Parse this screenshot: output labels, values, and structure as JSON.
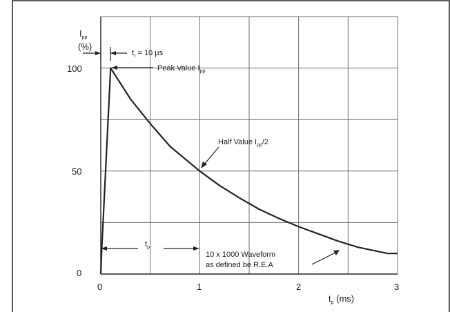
{
  "chart_data": {
    "type": "line",
    "title": "",
    "ylabel": {
      "main": "I",
      "sub": "pp",
      "unit": "(%)"
    },
    "xlabel": {
      "main": "t",
      "sub": "p",
      "unit": " (ms)"
    },
    "xlim": [
      0,
      3
    ],
    "ylim": [
      0,
      125
    ],
    "xticks": [
      "0",
      "1",
      "2",
      "3"
    ],
    "yticks": [
      "0",
      "50",
      "100"
    ],
    "grid": true,
    "series": [
      {
        "x": [
          0,
          0.01,
          0.1,
          0.3,
          0.5,
          0.7,
          0.9,
          1.0,
          1.2,
          1.4,
          1.6,
          1.8,
          2.0,
          2.2,
          2.4,
          2.6,
          2.8,
          2.9,
          3.0
        ],
        "y": [
          0,
          12,
          100,
          85,
          73,
          62,
          54,
          50,
          43,
          37,
          31.5,
          27,
          23,
          19.5,
          16,
          13,
          11,
          10,
          10
        ]
      }
    ],
    "annotations": {
      "tr": {
        "main": "t",
        "sub": "r",
        "rest": " = 10 µs"
      },
      "peak": {
        "main": "Peak Value I",
        "sub": "pp"
      },
      "half": {
        "main": "Half Value I",
        "sub": "pp",
        "rest": "/2"
      },
      "tp": {
        "main": "t",
        "sub": "p"
      },
      "waveform": {
        "line1": "10 x 1000 Waveform",
        "line2": "as defined be R.E.A"
      }
    }
  }
}
